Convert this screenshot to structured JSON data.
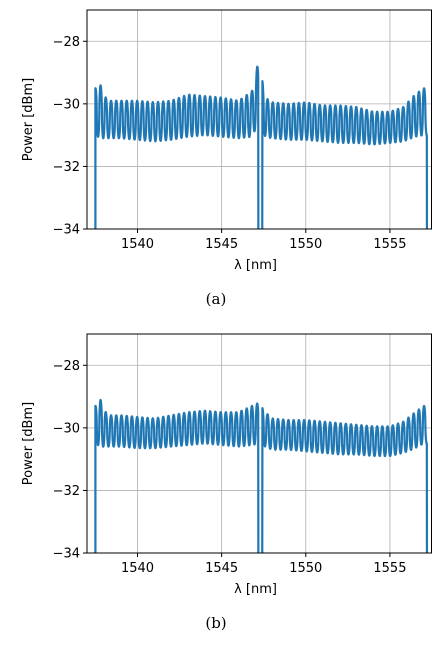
{
  "chart_data": [
    {
      "type": "line",
      "caption": "(a)",
      "xlabel": "λ [nm]",
      "ylabel": "Power [dBm]",
      "xlim": [
        1537,
        1557.5
      ],
      "ylim": [
        -34,
        -27
      ],
      "xticks": [
        1540,
        1545,
        1550,
        1555
      ],
      "xtick_labels": [
        "1540",
        "1545",
        "1550",
        "1555"
      ],
      "yticks": [
        -34,
        -32,
        -30,
        -28
      ],
      "ytick_labels": [
        "−34",
        "−32",
        "−30",
        "−28"
      ],
      "grid": true,
      "color": "#1f77b4",
      "series": [
        {
          "x": [
            1537.5,
            1537.8,
            1538.2,
            1539,
            1540,
            1541,
            1542,
            1543,
            1544,
            1545,
            1546,
            1546.8,
            1547.2,
            1547.6,
            1548,
            1549,
            1550,
            1551,
            1552,
            1553,
            1554,
            1555,
            1555.8,
            1556.5,
            1557,
            1557.2
          ],
          "y_upper": [
            -29.5,
            -29.4,
            -29.9,
            -29.9,
            -29.9,
            -29.95,
            -29.9,
            -29.7,
            -29.75,
            -29.8,
            -29.9,
            -29.6,
            -28.6,
            -29.8,
            -29.95,
            -30.0,
            -29.95,
            -30.05,
            -30.05,
            -30.1,
            -30.25,
            -30.25,
            -30.1,
            -29.7,
            -29.5,
            -29.5
          ],
          "y_lower": [
            -31.0,
            -31.1,
            -31.1,
            -31.1,
            -31.15,
            -31.2,
            -31.15,
            -31.05,
            -31.0,
            -31.05,
            -31.1,
            -31.05,
            -30.6,
            -31.05,
            -31.1,
            -31.15,
            -31.15,
            -31.2,
            -31.25,
            -31.25,
            -31.3,
            -31.25,
            -31.2,
            -31.05,
            -31.0,
            -31.0
          ],
          "notches_at": [
            1547.3
          ]
        }
      ]
    },
    {
      "type": "line",
      "caption": "(b)",
      "xlabel": "λ [nm]",
      "ylabel": "Power [dBm]",
      "xlim": [
        1537,
        1557.5
      ],
      "ylim": [
        -34,
        -27
      ],
      "xticks": [
        1540,
        1545,
        1550,
        1555
      ],
      "xtick_labels": [
        "1540",
        "1545",
        "1550",
        "1555"
      ],
      "yticks": [
        -34,
        -32,
        -30,
        -28
      ],
      "ytick_labels": [
        "−34",
        "−32",
        "−30",
        "−28"
      ],
      "grid": true,
      "color": "#1f77b4",
      "series": [
        {
          "x": [
            1537.5,
            1537.8,
            1538.2,
            1539,
            1540,
            1541,
            1542,
            1543,
            1544,
            1545,
            1546,
            1546.8,
            1547.2,
            1547.6,
            1548,
            1549,
            1550,
            1551,
            1552,
            1553,
            1554,
            1555,
            1555.8,
            1556.5,
            1557,
            1557.2
          ],
          "y_upper": [
            -29.3,
            -29.1,
            -29.6,
            -29.6,
            -29.65,
            -29.7,
            -29.6,
            -29.5,
            -29.45,
            -29.5,
            -29.5,
            -29.3,
            -29.2,
            -29.5,
            -29.7,
            -29.75,
            -29.75,
            -29.8,
            -29.85,
            -29.9,
            -29.95,
            -29.95,
            -29.8,
            -29.5,
            -29.3,
            -29.3
          ],
          "y_lower": [
            -30.5,
            -30.6,
            -30.6,
            -30.6,
            -30.65,
            -30.65,
            -30.6,
            -30.55,
            -30.5,
            -30.55,
            -30.6,
            -30.55,
            -30.5,
            -30.6,
            -30.7,
            -30.7,
            -30.75,
            -30.8,
            -30.85,
            -30.85,
            -30.9,
            -30.9,
            -30.8,
            -30.65,
            -30.5,
            -30.5
          ],
          "notches_at": [
            1547.3
          ]
        }
      ]
    }
  ]
}
